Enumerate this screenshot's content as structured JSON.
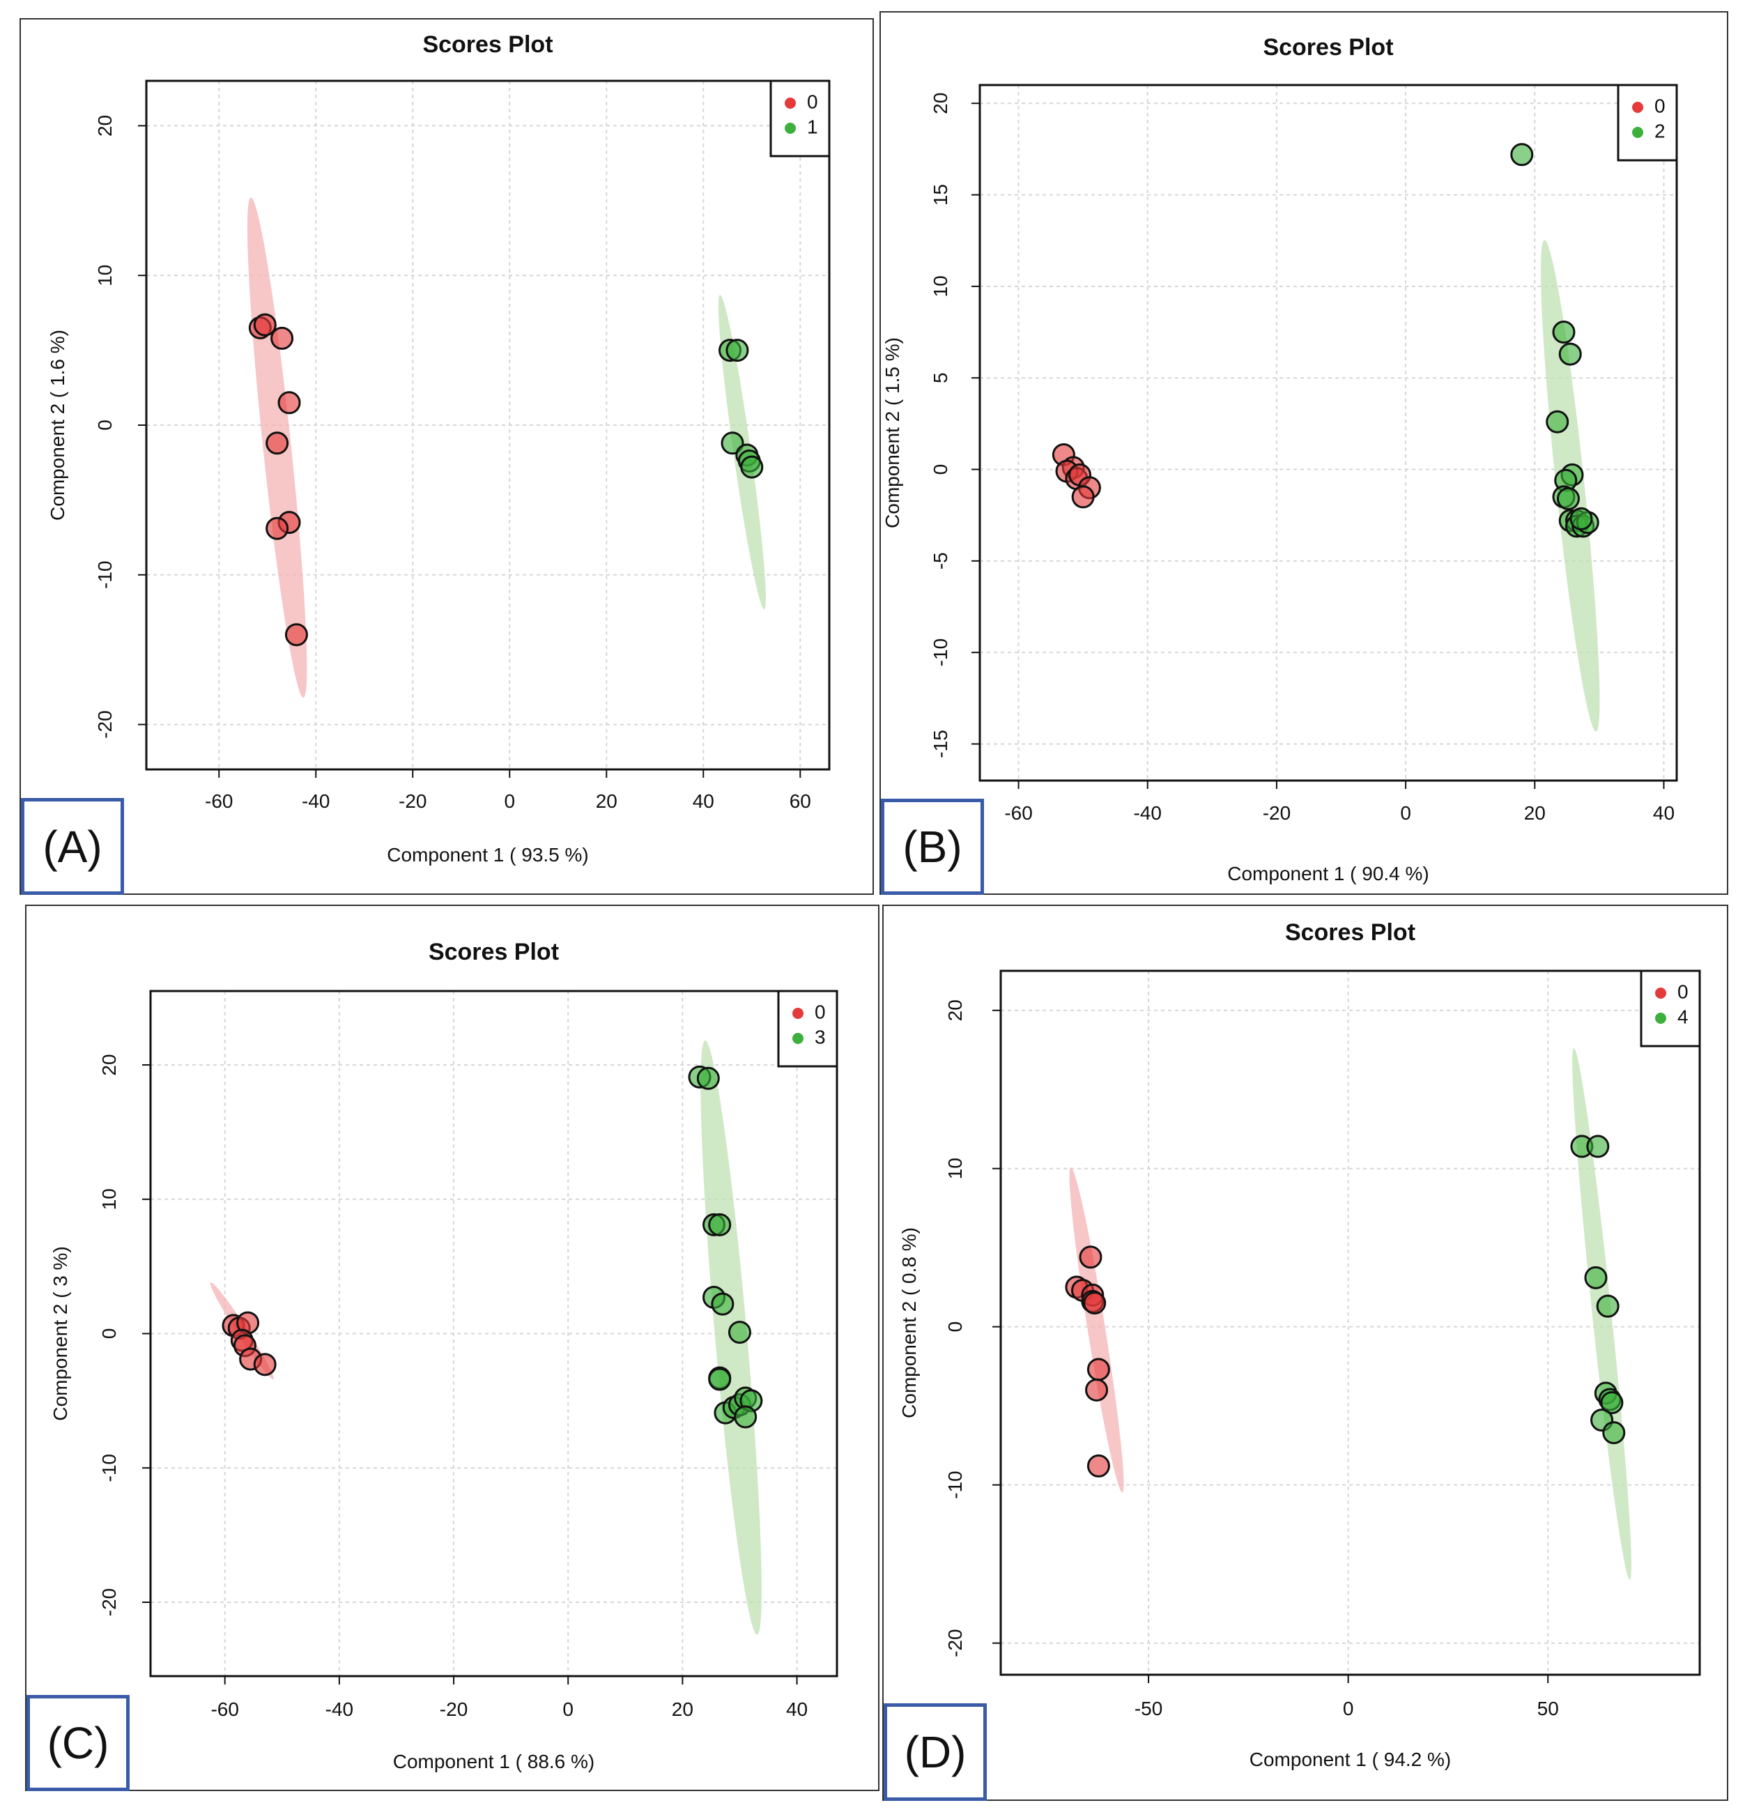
{
  "colors": {
    "group0": "#e53a3a",
    "groupB": "#3cb03c",
    "ellipse0": "#f4b3b3",
    "ellipseB": "#bfe0b3"
  },
  "chart_data": [
    {
      "type": "scatter",
      "panel": "(A)",
      "title": "Scores Plot",
      "xlabel": "Component 1 ( 93.5 %)",
      "ylabel": "Component 2 ( 1.6 %)",
      "xlim": [
        -75,
        66
      ],
      "ylim": [
        -23,
        23
      ],
      "xticks": [
        -60,
        -40,
        -20,
        0,
        20,
        40,
        60
      ],
      "yticks": [
        -20,
        -10,
        0,
        10,
        20
      ],
      "legend": [
        "0",
        "1"
      ],
      "ellipses": [
        {
          "group": "0",
          "cx": -48,
          "cy": -1.5,
          "major": 16.8,
          "minor": 2.9,
          "tilt_deg": 6
        },
        {
          "group": "1",
          "cx": 48,
          "cy": -1.8,
          "major": 10.6,
          "minor": 1.8,
          "tilt_deg": 8
        }
      ],
      "series": [
        {
          "name": "0",
          "points": [
            [
              -51.5,
              6.5
            ],
            [
              -50.5,
              6.7
            ],
            [
              -47,
              5.8
            ],
            [
              -45.5,
              1.5
            ],
            [
              -48,
              -1.2
            ],
            [
              -45.5,
              -6.5
            ],
            [
              -48,
              -6.9
            ],
            [
              -44,
              -14
            ]
          ]
        },
        {
          "name": "1",
          "points": [
            [
              45.5,
              5
            ],
            [
              47,
              5
            ],
            [
              46,
              -1.2
            ],
            [
              49,
              -2
            ],
            [
              49.5,
              -2.4
            ],
            [
              50,
              -2.8
            ]
          ]
        }
      ]
    },
    {
      "type": "scatter",
      "panel": "(B)",
      "title": "Scores Plot",
      "xlabel": "Component 1 ( 90.4 %)",
      "ylabel": "Component 2 ( 1.5 %)",
      "xlim": [
        -66,
        42
      ],
      "ylim": [
        -17,
        21
      ],
      "xticks": [
        -60,
        -40,
        -20,
        0,
        20,
        40
      ],
      "yticks": [
        -15,
        -10,
        -5,
        0,
        5,
        10,
        15,
        20
      ],
      "legend": [
        "0",
        "2"
      ],
      "ellipses": [
        {
          "group": "2",
          "cx": 25.5,
          "cy": -0.9,
          "major": 13.5,
          "minor": 2.2,
          "tilt_deg": 6
        }
      ],
      "series": [
        {
          "name": "0",
          "points": [
            [
              -53,
              0.8
            ],
            [
              -51.5,
              0.1
            ],
            [
              -52.5,
              -0.1
            ],
            [
              -51,
              -0.5
            ],
            [
              -50.5,
              -0.3
            ],
            [
              -49,
              -1
            ],
            [
              -50,
              -1.5
            ]
          ]
        },
        {
          "name": "2",
          "points": [
            [
              18,
              17.2
            ],
            [
              24.5,
              7.5
            ],
            [
              25.5,
              6.3
            ],
            [
              23.5,
              2.6
            ],
            [
              25.8,
              -0.3
            ],
            [
              24.8,
              -0.6
            ],
            [
              24.5,
              -1.5
            ],
            [
              25.2,
              -1.6
            ],
            [
              25.5,
              -2.8
            ],
            [
              26.5,
              -2.8
            ],
            [
              26.5,
              -3.1
            ],
            [
              27.5,
              -3.1
            ],
            [
              28.2,
              -2.9
            ],
            [
              27.2,
              -2.7
            ]
          ]
        }
      ]
    },
    {
      "type": "scatter",
      "panel": "(C)",
      "title": "Scores Plot",
      "xlabel": "Component 1 ( 88.6 %)",
      "ylabel": "Component 2 ( 3 %)",
      "xlim": [
        -73,
        47
      ],
      "ylim": [
        -25.5,
        25.5
      ],
      "xticks": [
        -60,
        -40,
        -20,
        0,
        20,
        40
      ],
      "yticks": [
        -20,
        -10,
        0,
        10,
        20
      ],
      "legend": [
        "0",
        "3"
      ],
      "ellipses": [
        {
          "group": "0",
          "cx": -57,
          "cy": 0.2,
          "major": 4.3,
          "minor": 0.9,
          "tilt_deg": 33
        },
        {
          "group": "3",
          "cx": 28.5,
          "cy": -0.3,
          "major": 22.2,
          "minor": 2.8,
          "tilt_deg": 5
        }
      ],
      "series": [
        {
          "name": "0",
          "points": [
            [
              -58.5,
              0.6
            ],
            [
              -57.5,
              0.4
            ],
            [
              -56,
              0.8
            ],
            [
              -57,
              -0.5
            ],
            [
              -56.5,
              -0.9
            ],
            [
              -55.5,
              -1.9
            ],
            [
              -53,
              -2.3
            ]
          ]
        },
        {
          "name": "3",
          "points": [
            [
              23,
              19.1
            ],
            [
              24.5,
              19
            ],
            [
              25.5,
              8.1
            ],
            [
              26.5,
              8.1
            ],
            [
              25.5,
              2.7
            ],
            [
              27,
              2.2
            ],
            [
              30,
              0.1
            ],
            [
              26.5,
              -3.3
            ],
            [
              26.5,
              -3.4
            ],
            [
              27.5,
              -5.9
            ],
            [
              29,
              -5.5
            ],
            [
              30,
              -5.3
            ],
            [
              31,
              -4.8
            ],
            [
              32,
              -5
            ],
            [
              31,
              -6.2
            ]
          ]
        }
      ]
    },
    {
      "type": "scatter",
      "panel": "(D)",
      "title": "Scores Plot",
      "xlabel": "Component 1 ( 94.2 %)",
      "ylabel": "Component 2 ( 0.8 %)",
      "xlim": [
        -87,
        88
      ],
      "ylim": [
        -22,
        22.5
      ],
      "xticks": [
        -50,
        0,
        50
      ],
      "yticks": [
        -20,
        -10,
        0,
        10,
        20
      ],
      "legend": [
        "0",
        "4"
      ],
      "ellipses": [
        {
          "group": "0",
          "cx": -63,
          "cy": -0.2,
          "major": 10.4,
          "minor": 2.2,
          "tilt_deg": 9
        },
        {
          "group": "4",
          "cx": 63.5,
          "cy": 0.8,
          "major": 16.9,
          "minor": 2.4,
          "tilt_deg": 6
        }
      ],
      "series": [
        {
          "name": "0",
          "points": [
            [
              -64.5,
              4.4
            ],
            [
              -68,
              2.5
            ],
            [
              -66.5,
              2.3
            ],
            [
              -64,
              2
            ],
            [
              -64,
              1.6
            ],
            [
              -63.5,
              1.5
            ],
            [
              -62.5,
              -2.7
            ],
            [
              -63,
              -4
            ],
            [
              -62.5,
              -8.8
            ]
          ]
        },
        {
          "name": "4",
          "points": [
            [
              58.5,
              11.4
            ],
            [
              62.5,
              11.4
            ],
            [
              62,
              3.1
            ],
            [
              65,
              1.3
            ],
            [
              64.5,
              -4.2
            ],
            [
              65.5,
              -4.6
            ],
            [
              66,
              -4.8
            ],
            [
              63.5,
              -5.9
            ],
            [
              66.5,
              -6.7
            ]
          ]
        }
      ]
    }
  ]
}
